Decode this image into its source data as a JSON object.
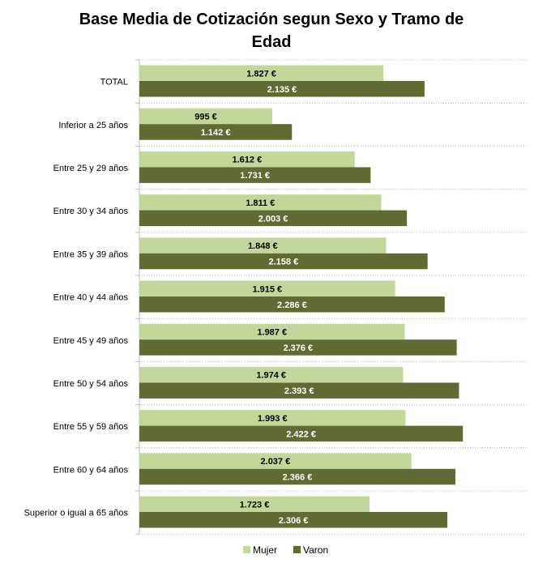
{
  "chart_data": {
    "type": "bar",
    "orientation": "horizontal",
    "title_lines": [
      "Base Media de Cotización segun Sexo y Tramo de",
      "Edad"
    ],
    "categories": [
      "TOTAL",
      "Inferior a 25 años",
      "Entre 25 y 29 años",
      "Entre 30 y 34 años",
      "Entre 35 y 39 años",
      "Entre 40 y 44 años",
      "Entre 45 y 49 años",
      "Entre 50 y 54 años",
      "Entre 55 y 59 años",
      "Entre 60 y 64 años",
      "Superior o igual a 65 años"
    ],
    "series": [
      {
        "name": "Mujer",
        "color": "#c4d79b",
        "label_color": "#000000",
        "values": [
          1827,
          995,
          1612,
          1811,
          1848,
          1915,
          1987,
          1974,
          1993,
          2037,
          1723
        ],
        "labels": [
          "1.827 €",
          "995 €",
          "1.612 €",
          "1.811 €",
          "1.848 €",
          "1.915 €",
          "1.987 €",
          "1.974 €",
          "1.993 €",
          "2.037 €",
          "1.723 €"
        ]
      },
      {
        "name": "Varon",
        "color": "#5f6b33",
        "label_color": "#ffffff",
        "values": [
          2135,
          1142,
          1731,
          2003,
          2158,
          2286,
          2376,
          2393,
          2422,
          2366,
          2306
        ],
        "labels": [
          "2.135 €",
          "1.142 €",
          "1.731 €",
          "2.003 €",
          "2.158 €",
          "2.286 €",
          "2.376 €",
          "2.393 €",
          "2.422 €",
          "2.366 €",
          "2.306 €"
        ]
      }
    ],
    "xlim": [
      0,
      2900
    ],
    "grid": true,
    "gridline_style": "dotted",
    "legend_position": "bottom",
    "axis_color": "#bfbfbf"
  }
}
